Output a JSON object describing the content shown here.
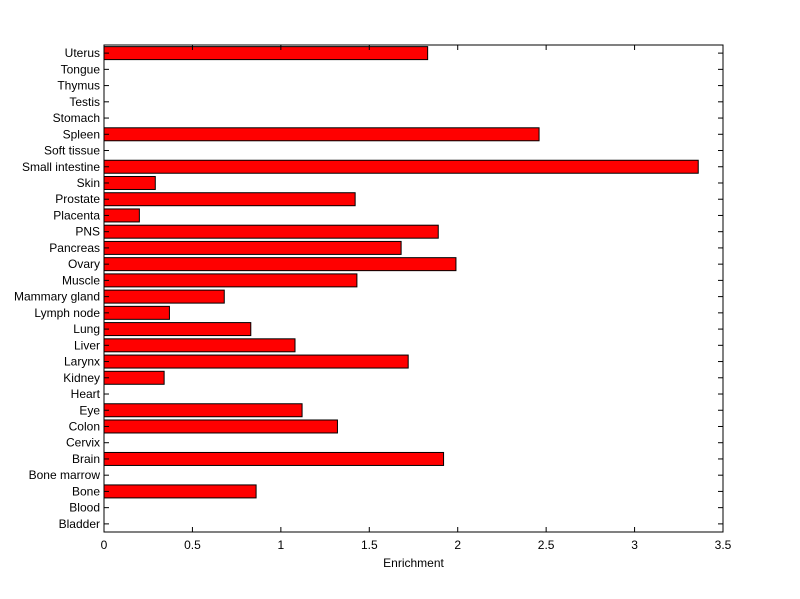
{
  "chart_data": {
    "type": "bar",
    "orientation": "horizontal",
    "categories": [
      "Uterus",
      "Tongue",
      "Thymus",
      "Testis",
      "Stomach",
      "Spleen",
      "Soft tissue",
      "Small intestine",
      "Skin",
      "Prostate",
      "Placenta",
      "PNS",
      "Pancreas",
      "Ovary",
      "Muscle",
      "Mammary gland",
      "Lymph node",
      "Lung",
      "Liver",
      "Larynx",
      "Kidney",
      "Heart",
      "Eye",
      "Colon",
      "Cervix",
      "Brain",
      "Bone marrow",
      "Bone",
      "Blood",
      "Bladder"
    ],
    "values": [
      1.83,
      0,
      0,
      0,
      0,
      2.46,
      0,
      3.36,
      0.29,
      1.42,
      0.2,
      1.89,
      1.68,
      1.99,
      1.43,
      0.68,
      0.37,
      0.83,
      1.08,
      1.72,
      0.34,
      0,
      1.12,
      1.32,
      0,
      1.92,
      0,
      0.86,
      0,
      0
    ],
    "xlabel": "Enrichment",
    "ylabel": "",
    "title": "",
    "xlim": [
      0,
      3.5
    ],
    "xticks": [
      0,
      0.5,
      1,
      1.5,
      2,
      2.5,
      3,
      3.5
    ],
    "xtick_labels": [
      "0",
      "0.5",
      "1",
      "1.5",
      "2",
      "2.5",
      "3",
      "3.5"
    ],
    "grid": false,
    "bar_color": "#ff0000",
    "bar_edge_color": "#000000"
  }
}
